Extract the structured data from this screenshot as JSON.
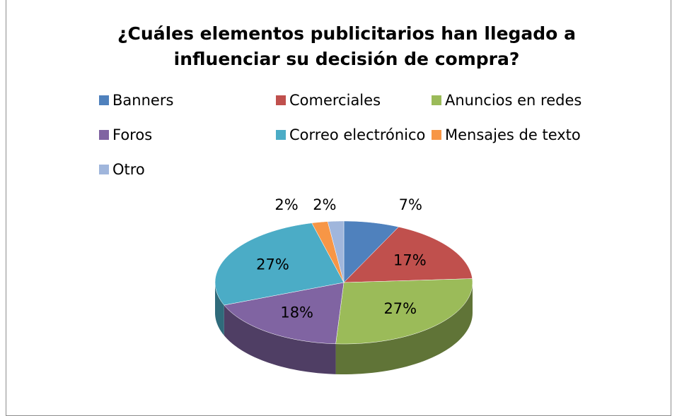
{
  "chart_data": {
    "type": "pie",
    "title": "¿Cuáles elementos publicitarios han llegado a influenciar su decisión de compra?",
    "categories": [
      "Banners",
      "Comerciales",
      "Anuncios en redes",
      "Foros",
      "Correo electrónico",
      "Mensajes de texto",
      "Otro"
    ],
    "values": [
      7,
      17,
      27,
      18,
      27,
      2,
      2
    ],
    "value_labels": [
      "7%",
      "17%",
      "27%",
      "18%",
      "27%",
      "2%",
      "2%"
    ],
    "colors": [
      "#4f81bd",
      "#c0504d",
      "#9bbb59",
      "#8064a2",
      "#4bacc6",
      "#f79646",
      "#a0b6dc"
    ],
    "legend": "top"
  }
}
